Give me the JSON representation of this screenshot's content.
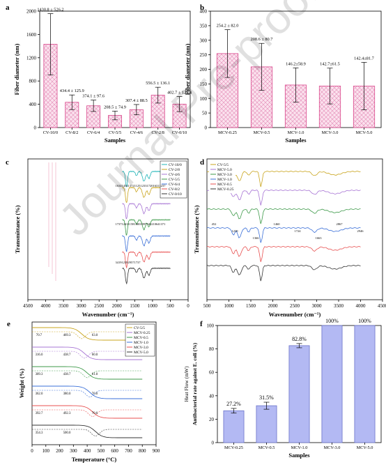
{
  "watermark": "Journal Pre-proof",
  "chart_data": [
    {
      "panel": "a",
      "type": "bar",
      "xlabel": "Samples",
      "ylabel": "Fiber diameter (nm)",
      "ylim": [
        0,
        2000
      ],
      "yticks": [
        0,
        400,
        800,
        1200,
        1600,
        2000
      ],
      "categories": [
        "CV-10/0",
        "CV-8/2",
        "CV-6/4",
        "CV-5/5",
        "CV-4/6",
        "CV-2/8",
        "CV-0/10"
      ],
      "values": [
        1430.8,
        434.4,
        374.1,
        208.5,
        307.4,
        556.5,
        402.7
      ],
      "errors": [
        526.2,
        125.9,
        97.6,
        74.9,
        88.5,
        136.1,
        129.4
      ],
      "labels": [
        "1430.8 ± 526.2",
        "434.4 ± 125.9",
        "374.1 ± 97.6",
        "208.5 ± 74.9",
        "307.4 ± 88.5",
        "556.5 ± 136.1",
        "402.7 ± 129.4"
      ],
      "bar_fill": "#f6c9dd",
      "bar_stroke": "#d9468b"
    },
    {
      "panel": "b",
      "type": "bar",
      "xlabel": "Samples",
      "ylabel": "Fiber diameter (nm)",
      "ylim": [
        0,
        400
      ],
      "yticks": [
        0,
        50,
        100,
        150,
        200,
        250,
        300,
        350,
        400
      ],
      "categories": [
        "MCV-0.25",
        "MCV-0.5",
        "MCV-1.0",
        "MCV-3.0",
        "MCV-5.0"
      ],
      "values": [
        254.2,
        208.6,
        146.2,
        142.7,
        142.4
      ],
      "errors": [
        82.0,
        80.7,
        58.9,
        61.5,
        81.7
      ],
      "labels": [
        "254.2 ± 82.0",
        "208.6 ± 80.7",
        "146.2±58.9",
        "142.7±61.5",
        "142.4±81.7"
      ],
      "bar_fill": "#f6c9dd",
      "bar_stroke": "#d9468b"
    },
    {
      "panel": "c",
      "type": "line",
      "xlabel": "Wavenumber (cm⁻¹)",
      "ylabel": "Transmittance (%)",
      "xlim": [
        4500,
        0
      ],
      "xticks": [
        4500,
        4000,
        3500,
        3000,
        2500,
        2000,
        1500,
        1000,
        500,
        0
      ],
      "legend": [
        "CV-10/0",
        "CV-2/8",
        "CV-4/6",
        "CV-5/5",
        "CV-6/4",
        "CV-8/2",
        "CV-0/10"
      ],
      "colors": [
        "#22b5b8",
        "#c9a41c",
        "#a774d4",
        "#3e9a4a",
        "#3a6fd8",
        "#e84f4f",
        "#333333"
      ],
      "annotations": [
        "1634",
        "1452",
        "1372",
        "1125",
        "1233",
        "1720",
        "1631",
        "1237",
        "1737",
        "1241",
        "1158",
        "1400",
        "1097",
        "3432",
        "1064",
        "1371",
        "3419",
        "1239",
        "2957",
        "1737"
      ]
    },
    {
      "panel": "d",
      "type": "line",
      "xlabel": "Wavenumber (cm⁻¹)",
      "ylabel": "Transmittance (%)",
      "xlim": [
        500,
        4500
      ],
      "xticks": [
        500,
        1000,
        1500,
        2000,
        2500,
        3000,
        3500,
        4000,
        4500
      ],
      "legend": [
        "CV-5/5",
        "MCV-5.0",
        "MCV-3.0",
        "MCV-1.0",
        "MCV-0.5",
        "MCV-0.25"
      ],
      "colors": [
        "#c9a41c",
        "#a774d4",
        "#3e9a4a",
        "#3a6fd8",
        "#e84f4f",
        "#333333"
      ],
      "annotations": [
        "452",
        "1239",
        "1366",
        "1460",
        "1724",
        "1663",
        "2867",
        "2946"
      ]
    },
    {
      "panel": "e",
      "type": "line",
      "xlabel": "Temperature (°C)",
      "ylabel": "Weight (%)",
      "xlim": [
        0,
        900
      ],
      "xticks": [
        0,
        100,
        200,
        300,
        400,
        500,
        600,
        700,
        800,
        900
      ],
      "legend": [
        "CV-5/5",
        "MCV-0.25",
        "MCV-0.5",
        "MCV-1.0",
        "MCV-3.0",
        "MCV-5.0"
      ],
      "colors": [
        "#c9a41c",
        "#a774d4",
        "#3e9a4a",
        "#3a6fd8",
        "#e84f4f",
        "#333333"
      ],
      "annotations": [
        "70.7",
        "469.3",
        "63.0",
        "316.0",
        "438.7",
        "60.0",
        "309.3",
        "438.7",
        "61.0",
        "362.0",
        "380.0",
        "70.6",
        "392.7",
        "492.3",
        "70.6",
        "354.3",
        "500.0"
      ]
    },
    {
      "panel": "f",
      "type": "bar",
      "xlabel": "Samples",
      "ylabel": "Antibacterial rate against E. coli (%)",
      "secondary_ylabel": "Heat Flow (mW)",
      "ylim": [
        0,
        100
      ],
      "yticks": [
        0,
        20,
        40,
        60,
        80,
        100
      ],
      "categories": [
        "MCV-0.25",
        "MCV-0.5",
        "MCV-1.0",
        "MCV-3.0",
        "MCV-5.0"
      ],
      "values": [
        27.2,
        31.5,
        82.8,
        100,
        100
      ],
      "errors": [
        2.0,
        3.0,
        1.8,
        0,
        0
      ],
      "labels": [
        "27.2%",
        "31.5%",
        "82.8%",
        "100%",
        "100%"
      ],
      "bar_fill": "#b3b9f3",
      "bar_stroke": "#6b73c9"
    }
  ]
}
